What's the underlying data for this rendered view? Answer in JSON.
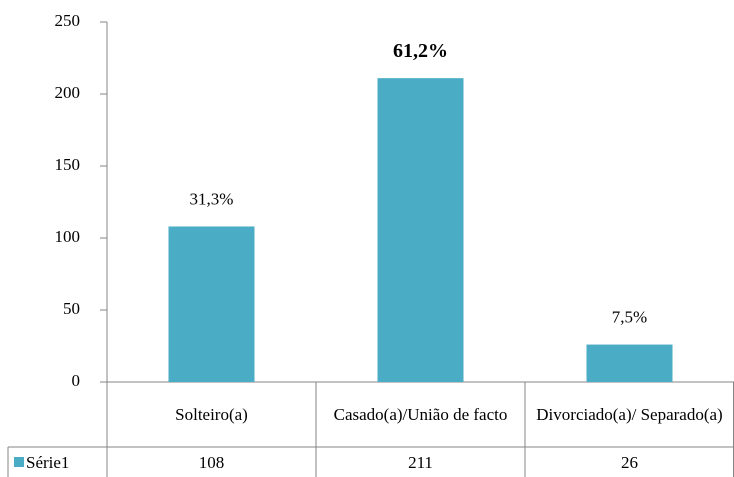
{
  "chart_data": {
    "type": "bar",
    "categories": [
      "Solteiro(a)",
      "Casado(a)/União de facto",
      "Divorciado(a)/ Separado(a)"
    ],
    "series": [
      {
        "name": "Série1",
        "color": "#4bacc6",
        "values": [
          108,
          211,
          26
        ]
      }
    ],
    "data_labels": [
      "31,3%",
      "61,2%",
      "7,5%"
    ],
    "data_label_bold": [
      false,
      true,
      false
    ],
    "ylim": [
      0,
      250
    ],
    "yticks": [
      0,
      50,
      100,
      150,
      200,
      250
    ],
    "grid": false
  }
}
